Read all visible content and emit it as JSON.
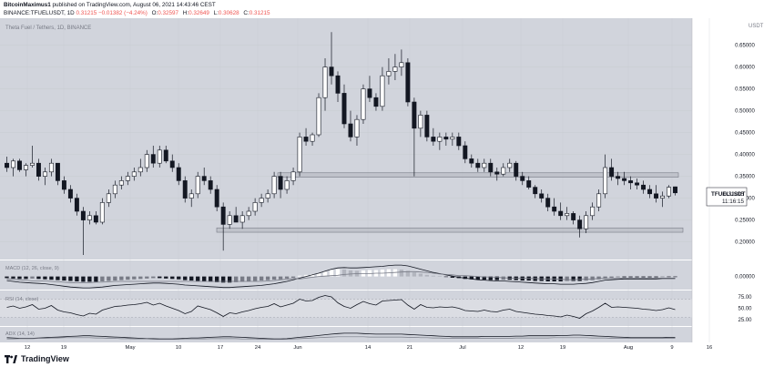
{
  "header": {
    "author": "BitcoinMaximus1",
    "published": "published on TradingView.com, August 06, 2021 14:43:46 CEST",
    "symbol_line": "BINANCE:TFUELUSDT, 1D",
    "ohlc_values": [
      "0.31215",
      "−0.01382 (−4.24%)",
      "O:0.32597",
      "H:0.32649",
      "L:0.30628",
      "C:0.31215"
    ],
    "open_label": "O:",
    "open": "0.32597",
    "high_label": "H:",
    "high": "0.32649",
    "low_label": "L:",
    "low": "0.30628",
    "close_label": "C:",
    "close": "0.31215",
    "last": "0.31215",
    "change": "−0.01382 (−4.24%)"
  },
  "chart_data": {
    "type": "candlestick",
    "title": "Theta Fuel / Tethers, 1D, BINANCE",
    "currency_label": "USDT",
    "y_ticks": [
      "0.65000",
      "0.60000",
      "0.55000",
      "0.50000",
      "0.45000",
      "0.40000",
      "0.35000",
      "0.30000",
      "0.25000",
      "0.20000"
    ],
    "y_tick_values": [
      0.65,
      0.6,
      0.55,
      0.5,
      0.45,
      0.4,
      0.35,
      0.3,
      0.25,
      0.2
    ],
    "ylim": [
      0.17,
      0.695
    ],
    "x_ticks": [
      "12",
      "19",
      "May",
      "10",
      "17",
      "24",
      "Jun",
      "14",
      "21",
      "Jul",
      "12",
      "19",
      "Aug",
      "9",
      "16"
    ],
    "symbol_tag": "TFUELUSDT",
    "price_tag": "0.31215",
    "countdown": "11:16:15",
    "resistance_zone": [
      0.348,
      0.358
    ],
    "support_zone": [
      0.222,
      0.232
    ],
    "candles": [
      [
        0.38,
        0.395,
        0.36,
        0.37
      ],
      [
        0.37,
        0.39,
        0.35,
        0.385
      ],
      [
        0.385,
        0.39,
        0.36,
        0.365
      ],
      [
        0.365,
        0.38,
        0.35,
        0.375
      ],
      [
        0.375,
        0.42,
        0.37,
        0.38
      ],
      [
        0.38,
        0.39,
        0.34,
        0.35
      ],
      [
        0.35,
        0.37,
        0.33,
        0.36
      ],
      [
        0.36,
        0.39,
        0.35,
        0.38
      ],
      [
        0.38,
        0.38,
        0.33,
        0.34
      ],
      [
        0.34,
        0.35,
        0.31,
        0.32
      ],
      [
        0.32,
        0.33,
        0.29,
        0.3
      ],
      [
        0.3,
        0.31,
        0.26,
        0.27
      ],
      [
        0.27,
        0.28,
        0.17,
        0.25
      ],
      [
        0.25,
        0.27,
        0.24,
        0.26
      ],
      [
        0.26,
        0.27,
        0.24,
        0.245
      ],
      [
        0.245,
        0.3,
        0.24,
        0.29
      ],
      [
        0.29,
        0.32,
        0.28,
        0.31
      ],
      [
        0.31,
        0.34,
        0.3,
        0.33
      ],
      [
        0.33,
        0.35,
        0.32,
        0.34
      ],
      [
        0.34,
        0.36,
        0.33,
        0.35
      ],
      [
        0.35,
        0.37,
        0.34,
        0.36
      ],
      [
        0.36,
        0.39,
        0.35,
        0.37
      ],
      [
        0.37,
        0.41,
        0.36,
        0.4
      ],
      [
        0.4,
        0.42,
        0.37,
        0.38
      ],
      [
        0.38,
        0.42,
        0.37,
        0.41
      ],
      [
        0.41,
        0.42,
        0.38,
        0.385
      ],
      [
        0.385,
        0.4,
        0.36,
        0.37
      ],
      [
        0.37,
        0.38,
        0.33,
        0.34
      ],
      [
        0.34,
        0.35,
        0.29,
        0.3
      ],
      [
        0.3,
        0.32,
        0.28,
        0.31
      ],
      [
        0.31,
        0.36,
        0.3,
        0.35
      ],
      [
        0.35,
        0.37,
        0.33,
        0.34
      ],
      [
        0.34,
        0.35,
        0.31,
        0.32
      ],
      [
        0.32,
        0.33,
        0.27,
        0.28
      ],
      [
        0.28,
        0.29,
        0.18,
        0.24
      ],
      [
        0.24,
        0.27,
        0.23,
        0.26
      ],
      [
        0.26,
        0.28,
        0.25,
        0.245
      ],
      [
        0.245,
        0.27,
        0.23,
        0.26
      ],
      [
        0.26,
        0.28,
        0.25,
        0.27
      ],
      [
        0.27,
        0.3,
        0.26,
        0.29
      ],
      [
        0.29,
        0.31,
        0.28,
        0.3
      ],
      [
        0.3,
        0.32,
        0.29,
        0.31
      ],
      [
        0.31,
        0.36,
        0.3,
        0.35
      ],
      [
        0.35,
        0.36,
        0.3,
        0.32
      ],
      [
        0.32,
        0.35,
        0.31,
        0.34
      ],
      [
        0.34,
        0.37,
        0.33,
        0.36
      ],
      [
        0.36,
        0.45,
        0.35,
        0.44
      ],
      [
        0.44,
        0.46,
        0.42,
        0.43
      ],
      [
        0.43,
        0.45,
        0.42,
        0.445
      ],
      [
        0.445,
        0.54,
        0.44,
        0.53
      ],
      [
        0.53,
        0.62,
        0.5,
        0.6
      ],
      [
        0.6,
        0.68,
        0.56,
        0.58
      ],
      [
        0.58,
        0.59,
        0.52,
        0.54
      ],
      [
        0.54,
        0.56,
        0.46,
        0.47
      ],
      [
        0.47,
        0.5,
        0.43,
        0.44
      ],
      [
        0.44,
        0.49,
        0.42,
        0.48
      ],
      [
        0.48,
        0.56,
        0.47,
        0.55
      ],
      [
        0.55,
        0.58,
        0.52,
        0.53
      ],
      [
        0.53,
        0.54,
        0.5,
        0.51
      ],
      [
        0.51,
        0.6,
        0.5,
        0.58
      ],
      [
        0.58,
        0.62,
        0.56,
        0.59
      ],
      [
        0.59,
        0.63,
        0.57,
        0.6
      ],
      [
        0.6,
        0.64,
        0.58,
        0.61
      ],
      [
        0.61,
        0.62,
        0.51,
        0.52
      ],
      [
        0.52,
        0.53,
        0.35,
        0.46
      ],
      [
        0.46,
        0.5,
        0.44,
        0.49
      ],
      [
        0.49,
        0.5,
        0.43,
        0.44
      ],
      [
        0.44,
        0.46,
        0.42,
        0.43
      ],
      [
        0.43,
        0.45,
        0.41,
        0.44
      ],
      [
        0.44,
        0.45,
        0.42,
        0.435
      ],
      [
        0.435,
        0.45,
        0.42,
        0.44
      ],
      [
        0.44,
        0.45,
        0.41,
        0.42
      ],
      [
        0.42,
        0.43,
        0.38,
        0.39
      ],
      [
        0.39,
        0.4,
        0.37,
        0.38
      ],
      [
        0.38,
        0.39,
        0.36,
        0.37
      ],
      [
        0.37,
        0.39,
        0.36,
        0.38
      ],
      [
        0.38,
        0.39,
        0.35,
        0.36
      ],
      [
        0.36,
        0.37,
        0.34,
        0.355
      ],
      [
        0.355,
        0.38,
        0.35,
        0.37
      ],
      [
        0.37,
        0.39,
        0.36,
        0.38
      ],
      [
        0.38,
        0.385,
        0.34,
        0.35
      ],
      [
        0.35,
        0.36,
        0.33,
        0.34
      ],
      [
        0.34,
        0.35,
        0.32,
        0.325
      ],
      [
        0.325,
        0.33,
        0.3,
        0.31
      ],
      [
        0.31,
        0.32,
        0.29,
        0.3
      ],
      [
        0.3,
        0.31,
        0.27,
        0.28
      ],
      [
        0.28,
        0.3,
        0.26,
        0.27
      ],
      [
        0.27,
        0.29,
        0.25,
        0.26
      ],
      [
        0.26,
        0.28,
        0.25,
        0.265
      ],
      [
        0.265,
        0.27,
        0.24,
        0.25
      ],
      [
        0.25,
        0.26,
        0.21,
        0.23
      ],
      [
        0.23,
        0.27,
        0.22,
        0.26
      ],
      [
        0.26,
        0.29,
        0.25,
        0.28
      ],
      [
        0.28,
        0.32,
        0.27,
        0.31
      ],
      [
        0.31,
        0.4,
        0.3,
        0.37
      ],
      [
        0.37,
        0.39,
        0.34,
        0.35
      ],
      [
        0.35,
        0.36,
        0.33,
        0.345
      ],
      [
        0.345,
        0.36,
        0.33,
        0.34
      ],
      [
        0.34,
        0.35,
        0.32,
        0.335
      ],
      [
        0.335,
        0.345,
        0.32,
        0.33
      ],
      [
        0.33,
        0.34,
        0.31,
        0.32
      ],
      [
        0.32,
        0.33,
        0.3,
        0.31
      ],
      [
        0.31,
        0.33,
        0.29,
        0.3
      ],
      [
        0.3,
        0.315,
        0.28,
        0.305
      ],
      [
        0.305,
        0.33,
        0.3,
        0.325
      ],
      [
        0.32597,
        0.32649,
        0.30628,
        0.31215
      ]
    ]
  },
  "macd": {
    "label": "MACD (12, 26, close, 9)",
    "y_ticks": [
      "0.00000"
    ],
    "ylim": [
      -0.03,
      0.035
    ],
    "hist": [
      -0.004,
      -0.005,
      -0.006,
      -0.006,
      -0.005,
      -0.006,
      -0.007,
      -0.008,
      -0.009,
      -0.01,
      -0.011,
      -0.012,
      -0.013,
      -0.013,
      -0.013,
      -0.012,
      -0.011,
      -0.01,
      -0.009,
      -0.008,
      -0.007,
      -0.006,
      -0.005,
      -0.004,
      -0.004,
      -0.005,
      -0.006,
      -0.007,
      -0.009,
      -0.01,
      -0.011,
      -0.012,
      -0.013,
      -0.014,
      -0.015,
      -0.015,
      -0.014,
      -0.013,
      -0.012,
      -0.011,
      -0.01,
      -0.009,
      -0.008,
      -0.007,
      -0.005,
      -0.003,
      0.002,
      0.004,
      0.006,
      0.008,
      0.012,
      0.016,
      0.018,
      0.017,
      0.015,
      0.014,
      0.015,
      0.016,
      0.016,
      0.017,
      0.018,
      0.018,
      0.017,
      0.014,
      0.01,
      0.007,
      0.004,
      0.002,
      0.001,
      -0.001,
      -0.003,
      -0.004,
      -0.006,
      -0.007,
      -0.008,
      -0.008,
      -0.009,
      -0.009,
      -0.008,
      -0.008,
      -0.009,
      -0.01,
      -0.01,
      -0.011,
      -0.011,
      -0.012,
      -0.012,
      -0.012,
      -0.011,
      -0.011,
      -0.011,
      -0.01,
      -0.009,
      -0.007,
      -0.004,
      -0.003,
      -0.002,
      -0.002,
      -0.002,
      -0.002,
      -0.002,
      -0.002,
      -0.002,
      -0.001,
      -0.001,
      -0.001
    ],
    "macd_line": [
      -0.01,
      -0.012,
      -0.014,
      -0.015,
      -0.016,
      -0.017,
      -0.018,
      -0.02,
      -0.022,
      -0.024,
      -0.026,
      -0.027,
      -0.028,
      -0.028,
      -0.027,
      -0.026,
      -0.024,
      -0.022,
      -0.021,
      -0.02,
      -0.019,
      -0.018,
      -0.017,
      -0.016,
      -0.016,
      -0.017,
      -0.018,
      -0.019,
      -0.021,
      -0.022,
      -0.023,
      -0.024,
      -0.025,
      -0.026,
      -0.027,
      -0.027,
      -0.026,
      -0.025,
      -0.024,
      -0.023,
      -0.022,
      -0.02,
      -0.018,
      -0.015,
      -0.012,
      -0.008,
      -0.004,
      0.0,
      0.004,
      0.008,
      0.013,
      0.018,
      0.021,
      0.022,
      0.021,
      0.021,
      0.022,
      0.023,
      0.024,
      0.025,
      0.027,
      0.028,
      0.028,
      0.026,
      0.022,
      0.018,
      0.014,
      0.01,
      0.007,
      0.004,
      0.001,
      -0.002,
      -0.004,
      -0.006,
      -0.008,
      -0.009,
      -0.01,
      -0.011,
      -0.011,
      -0.012,
      -0.013,
      -0.014,
      -0.015,
      -0.016,
      -0.017,
      -0.018,
      -0.018,
      -0.019,
      -0.019,
      -0.019,
      -0.018,
      -0.017,
      -0.015,
      -0.012,
      -0.009,
      -0.008,
      -0.007,
      -0.006,
      -0.006,
      -0.006,
      -0.006,
      -0.006,
      -0.006,
      -0.005,
      -0.005,
      -0.005
    ],
    "signal_line": [
      -0.006,
      -0.007,
      -0.008,
      -0.009,
      -0.011,
      -0.011,
      -0.011,
      -0.012,
      -0.013,
      -0.014,
      -0.015,
      -0.015,
      -0.015,
      -0.015,
      -0.014,
      -0.014,
      -0.013,
      -0.012,
      -0.012,
      -0.012,
      -0.012,
      -0.012,
      -0.012,
      -0.012,
      -0.012,
      -0.012,
      -0.012,
      -0.012,
      -0.012,
      -0.012,
      -0.012,
      -0.012,
      -0.012,
      -0.012,
      -0.012,
      -0.012,
      -0.012,
      -0.012,
      -0.012,
      -0.012,
      -0.012,
      -0.011,
      -0.01,
      -0.008,
      -0.007,
      -0.005,
      -0.006,
      -0.004,
      -0.002,
      0.0,
      0.001,
      0.002,
      0.003,
      0.005,
      0.006,
      0.007,
      0.007,
      0.007,
      0.008,
      0.008,
      0.009,
      0.01,
      0.011,
      0.012,
      0.012,
      0.011,
      0.01,
      0.008,
      0.006,
      0.005,
      0.004,
      0.002,
      0.002,
      0.001,
      0.0,
      -0.001,
      -0.001,
      -0.002,
      -0.003,
      -0.004,
      -0.004,
      -0.004,
      -0.005,
      -0.005,
      -0.006,
      -0.006,
      -0.006,
      -0.007,
      -0.008,
      -0.008,
      -0.007,
      -0.007,
      -0.006,
      -0.005,
      -0.005,
      -0.005,
      -0.005,
      -0.004,
      -0.004,
      -0.004,
      -0.004,
      -0.004,
      -0.004,
      -0.004,
      -0.004,
      -0.004
    ]
  },
  "rsi": {
    "label": "RSI (14, close)",
    "y_ticks": [
      "75.00",
      "50.00",
      "25.00"
    ],
    "y_tick_values": [
      75,
      50,
      25
    ],
    "ylim": [
      15,
      85
    ],
    "band": [
      30,
      70
    ],
    "values": [
      52,
      55,
      50,
      53,
      58,
      48,
      50,
      56,
      46,
      42,
      40,
      36,
      33,
      39,
      37,
      46,
      50,
      54,
      55,
      57,
      58,
      60,
      63,
      57,
      61,
      55,
      50,
      45,
      38,
      43,
      55,
      51,
      47,
      40,
      32,
      40,
      38,
      42,
      45,
      49,
      52,
      54,
      60,
      53,
      57,
      61,
      70,
      66,
      67,
      74,
      78,
      75,
      62,
      54,
      50,
      58,
      65,
      60,
      57,
      66,
      67,
      68,
      69,
      57,
      48,
      58,
      52,
      51,
      53,
      52,
      53,
      50,
      45,
      44,
      43,
      46,
      43,
      42,
      46,
      48,
      43,
      41,
      39,
      37,
      36,
      34,
      33,
      31,
      35,
      32,
      28,
      38,
      44,
      52,
      61,
      52,
      53,
      52,
      51,
      50,
      48,
      47,
      45,
      47,
      51,
      47
    ]
  },
  "adx": {
    "label": "ADX (14, 14)",
    "ylim": [
      10,
      50
    ],
    "adx_values": [
      22,
      21,
      20,
      20,
      20,
      21,
      22,
      23,
      24,
      25,
      26,
      27,
      28,
      28,
      27,
      26,
      25,
      24,
      23,
      22,
      21,
      20,
      19,
      19,
      18,
      18,
      18,
      19,
      20,
      21,
      21,
      22,
      23,
      24,
      25,
      25,
      24,
      23,
      22,
      21,
      20,
      19,
      18,
      18,
      19,
      21,
      23,
      25,
      27,
      29,
      31,
      33,
      35,
      36,
      36,
      36,
      35,
      34,
      33,
      33,
      33,
      33,
      33,
      32,
      31,
      30,
      29,
      28,
      27,
      26,
      25,
      25,
      25,
      25,
      25,
      26,
      26,
      26,
      26,
      26,
      27,
      27,
      28,
      28,
      28,
      28,
      28,
      29,
      29,
      30,
      30,
      29,
      28,
      27,
      26,
      25,
      24,
      23,
      22,
      22,
      22,
      22,
      22,
      22,
      23,
      23
    ],
    "di_values": [
      18,
      18,
      19,
      19,
      19,
      20,
      20,
      21,
      21,
      22,
      22,
      22,
      22,
      22,
      21,
      21,
      20,
      20,
      19,
      19,
      18,
      18,
      18,
      17,
      17,
      17,
      17,
      17,
      18,
      18,
      18,
      18,
      19,
      19,
      19,
      19,
      19,
      18,
      18,
      18,
      17,
      17,
      17,
      17,
      17,
      18,
      19,
      20,
      21,
      22,
      23,
      24,
      25,
      25,
      25,
      25,
      25,
      24,
      24,
      24,
      24,
      24,
      24,
      23,
      23,
      22,
      22,
      21,
      21,
      20,
      20,
      20,
      20,
      20,
      20,
      20,
      20,
      20,
      20,
      20,
      21,
      21,
      21,
      21,
      21,
      21,
      22,
      22,
      22,
      22,
      22,
      22,
      21,
      21,
      21,
      20,
      20,
      20,
      20,
      20,
      20,
      20,
      20,
      20,
      20,
      20
    ]
  },
  "footer": {
    "brand": "TradingView"
  }
}
